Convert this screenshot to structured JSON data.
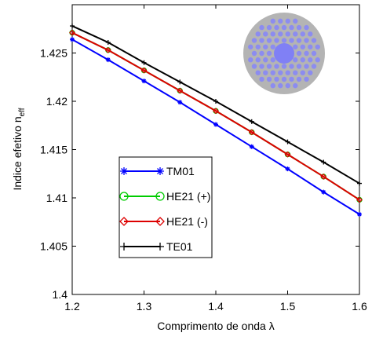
{
  "chart_data": {
    "type": "line",
    "xlabel": "Comprimento de onda λ",
    "ylabel": "Indice efetivo n",
    "ylabel_subscript": "eff",
    "x": [
      1.2,
      1.25,
      1.3,
      1.35,
      1.4,
      1.45,
      1.5,
      1.55,
      1.6
    ],
    "series": [
      {
        "name": "TM01",
        "color": "#0000ff",
        "marker": "asterisk",
        "values": [
          1.4264,
          1.4243,
          1.4221,
          1.4199,
          1.4176,
          1.4153,
          1.413,
          1.4106,
          1.4083
        ]
      },
      {
        "name": "HE21 (+)",
        "color": "#00cc00",
        "marker": "circle",
        "values": [
          1.4271,
          1.4253,
          1.4232,
          1.4211,
          1.419,
          1.4168,
          1.4145,
          1.4122,
          1.4098
        ]
      },
      {
        "name": "HE21 (-)",
        "color": "#dd0000",
        "marker": "diamond",
        "values": [
          1.4271,
          1.4253,
          1.4232,
          1.4211,
          1.419,
          1.4168,
          1.4145,
          1.4122,
          1.4098
        ]
      },
      {
        "name": "TE01",
        "color": "#000000",
        "marker": "plus",
        "values": [
          1.4278,
          1.4261,
          1.424,
          1.422,
          1.42,
          1.4179,
          1.4158,
          1.4137,
          1.4115
        ]
      }
    ],
    "xlim": [
      1.2,
      1.6
    ],
    "xticks": [
      1.2,
      1.3,
      1.4,
      1.5,
      1.6
    ],
    "ylim": [
      1.4,
      1.43
    ],
    "yticks": [
      1.4,
      1.405,
      1.41,
      1.415,
      1.42,
      1.425
    ],
    "grid": false
  }
}
